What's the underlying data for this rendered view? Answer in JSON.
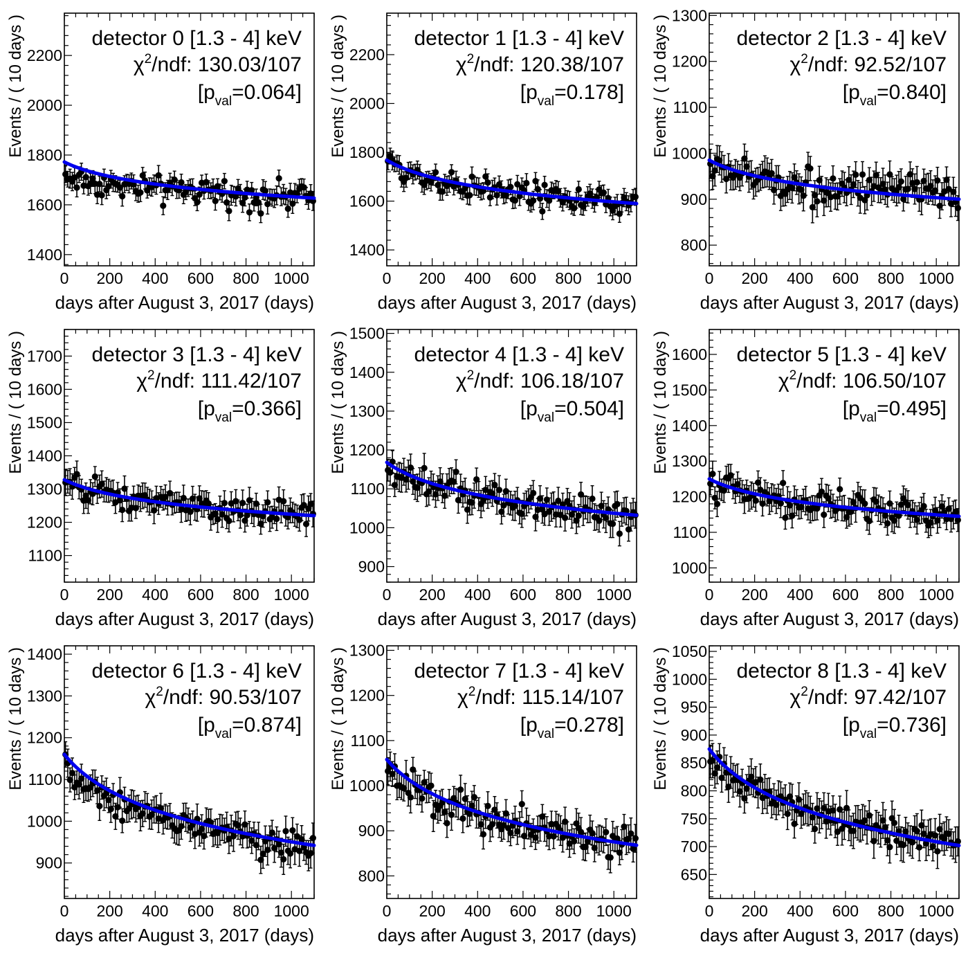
{
  "chart_data": [
    {
      "type": "scatter",
      "detector": "detector 0 [1.3 - 4] keV",
      "chi2_label": "/ndf: 130.03/107",
      "chi_symbol": "χ",
      "chi_sup": "2",
      "pval_open": "[p",
      "pval_sub": "val",
      "pval_close": "=0.064]",
      "xlabel": "days after August 3, 2017 (days)",
      "ylabel": "Events / ( 10 days )",
      "xlim": [
        0,
        1100
      ],
      "ylim": [
        1355,
        2370
      ],
      "xticks": [
        0,
        200,
        400,
        600,
        800,
        1000
      ],
      "yticks": [
        1400,
        1600,
        1800,
        2000,
        2200
      ],
      "fit": {
        "a": 1772,
        "b": 1627
      },
      "points_approx": {
        "start": 1715,
        "end": 1630,
        "amplitude": 55,
        "err": 35,
        "n": 110
      }
    },
    {
      "type": "scatter",
      "detector": "detector 1 [1.3 - 4] keV",
      "chi2_label": "/ndf: 120.38/107",
      "chi_symbol": "χ",
      "chi_sup": "2",
      "pval_open": "[p",
      "pval_sub": "val",
      "pval_close": "=0.178]",
      "xlabel": "days after August 3, 2017 (days)",
      "ylabel": "Events / ( 10 days )",
      "xlim": [
        0,
        1100
      ],
      "ylim": [
        1335,
        2370
      ],
      "xticks": [
        0,
        200,
        400,
        600,
        800,
        1000
      ],
      "yticks": [
        1400,
        1600,
        1800,
        2000,
        2200
      ],
      "fit": {
        "a": 1768,
        "b": 1590
      },
      "points_approx": {
        "start": 1760,
        "end": 1590,
        "amplitude": 55,
        "err": 35,
        "n": 110
      }
    },
    {
      "type": "scatter",
      "detector": "detector 2 [1.3 - 4] keV",
      "chi2_label": "/ndf: 92.52/107",
      "chi_symbol": "χ",
      "chi_sup": "2",
      "pval_open": "[p",
      "pval_sub": "val",
      "pval_close": "=0.840]",
      "xlabel": "days after August 3, 2017 (days)",
      "ylabel": "Events / ( 10 days )",
      "xlim": [
        0,
        1100
      ],
      "ylim": [
        755,
        1305
      ],
      "xticks": [
        0,
        200,
        400,
        600,
        800,
        1000
      ],
      "yticks": [
        800,
        900,
        1000,
        1100,
        1200,
        1300
      ],
      "fit": {
        "a": 985,
        "b": 900
      },
      "points_approx": {
        "start": 975,
        "end": 905,
        "amplitude": 38,
        "err": 30,
        "n": 110
      }
    },
    {
      "type": "scatter",
      "detector": "detector 3 [1.3 - 4] keV",
      "chi2_label": "/ndf: 111.42/107",
      "chi_symbol": "χ",
      "chi_sup": "2",
      "pval_open": "[p",
      "pval_sub": "val",
      "pval_close": "=0.366]",
      "xlabel": "days after August 3, 2017 (days)",
      "ylabel": "Events / ( 10 days )",
      "xlim": [
        0,
        1100
      ],
      "ylim": [
        1020,
        1780
      ],
      "xticks": [
        0,
        200,
        400,
        600,
        800,
        1000
      ],
      "yticks": [
        1100,
        1200,
        1300,
        1400,
        1500,
        1600,
        1700
      ],
      "fit": {
        "a": 1328,
        "b": 1220
      },
      "points_approx": {
        "start": 1320,
        "end": 1220,
        "amplitude": 40,
        "err": 35,
        "n": 110
      }
    },
    {
      "type": "scatter",
      "detector": "detector 4 [1.3 - 4] keV",
      "chi2_label": "/ndf: 106.18/107",
      "chi_symbol": "χ",
      "chi_sup": "2",
      "pval_open": "[p",
      "pval_sub": "val",
      "pval_close": "=0.504]",
      "xlabel": "days after August 3, 2017 (days)",
      "ylabel": "Events / ( 10 days )",
      "xlim": [
        0,
        1100
      ],
      "ylim": [
        860,
        1510
      ],
      "xticks": [
        0,
        200,
        400,
        600,
        800,
        1000
      ],
      "yticks": [
        900,
        1000,
        1100,
        1200,
        1300,
        1400,
        1500
      ],
      "fit": {
        "a": 1168,
        "b": 1032
      },
      "points_approx": {
        "start": 1150,
        "end": 1035,
        "amplitude": 45,
        "err": 33,
        "n": 110
      }
    },
    {
      "type": "scatter",
      "detector": "detector 5 [1.3 - 4] keV",
      "chi2_label": "/ndf: 106.50/107",
      "chi_symbol": "χ",
      "chi_sup": "2",
      "pval_open": "[p",
      "pval_sub": "val",
      "pval_close": "=0.495]",
      "xlabel": "days after August 3, 2017 (days)",
      "ylabel": "Events / ( 10 days )",
      "xlim": [
        0,
        1100
      ],
      "ylim": [
        960,
        1670
      ],
      "xticks": [
        0,
        200,
        400,
        600,
        800,
        1000
      ],
      "yticks": [
        1000,
        1100,
        1200,
        1300,
        1400,
        1500,
        1600
      ],
      "fit": {
        "a": 1250,
        "b": 1145
      },
      "points_approx": {
        "start": 1240,
        "end": 1145,
        "amplitude": 42,
        "err": 35,
        "n": 110
      }
    },
    {
      "type": "scatter",
      "detector": "detector 6 [1.3 - 4] keV",
      "chi2_label": "/ndf: 90.53/107",
      "chi_symbol": "χ",
      "chi_sup": "2",
      "pval_open": "[p",
      "pval_sub": "val",
      "pval_close": "=0.874]",
      "xlabel": "days after August 3, 2017 (days)",
      "ylabel": "Events / ( 10 days )",
      "xlim": [
        0,
        1100
      ],
      "ylim": [
        815,
        1420
      ],
      "xticks": [
        0,
        200,
        400,
        600,
        800,
        1000
      ],
      "yticks": [
        900,
        1000,
        1100,
        1200,
        1300,
        1400
      ],
      "fit": {
        "a": 1160,
        "b": 942
      },
      "points_approx": {
        "start": 1130,
        "end": 940,
        "amplitude": 38,
        "err": 32,
        "n": 110
      }
    },
    {
      "type": "scatter",
      "detector": "detector 7 [1.3 - 4] keV",
      "chi2_label": "/ndf: 115.14/107",
      "chi_symbol": "χ",
      "chi_sup": "2",
      "pval_open": "[p",
      "pval_sub": "val",
      "pval_close": "=0.278]",
      "xlabel": "days after August 3, 2017 (days)",
      "ylabel": "Events / ( 10 days )",
      "xlim": [
        0,
        1100
      ],
      "ylim": [
        750,
        1310
      ],
      "xticks": [
        0,
        200,
        400,
        600,
        800,
        1000
      ],
      "yticks": [
        800,
        900,
        1000,
        1100,
        1200,
        1300
      ],
      "fit": {
        "a": 1058,
        "b": 868
      },
      "points_approx": {
        "start": 1040,
        "end": 870,
        "amplitude": 40,
        "err": 30,
        "n": 110
      }
    },
    {
      "type": "scatter",
      "detector": "detector 8 [1.3 - 4] keV",
      "chi2_label": "/ndf: 97.42/107",
      "chi_symbol": "χ",
      "chi_sup": "2",
      "pval_open": "[p",
      "pval_sub": "val",
      "pval_close": "=0.736]",
      "xlabel": "days after August 3, 2017 (days)",
      "ylabel": "Events / ( 10 days )",
      "xlim": [
        0,
        1100
      ],
      "ylim": [
        607,
        1060
      ],
      "xticks": [
        0,
        200,
        400,
        600,
        800,
        1000
      ],
      "yticks": [
        650,
        700,
        750,
        800,
        850,
        900,
        950,
        1000,
        1050
      ],
      "fit": {
        "a": 875,
        "b": 702
      },
      "points_approx": {
        "start": 860,
        "end": 705,
        "amplitude": 30,
        "err": 28,
        "n": 110
      }
    }
  ]
}
